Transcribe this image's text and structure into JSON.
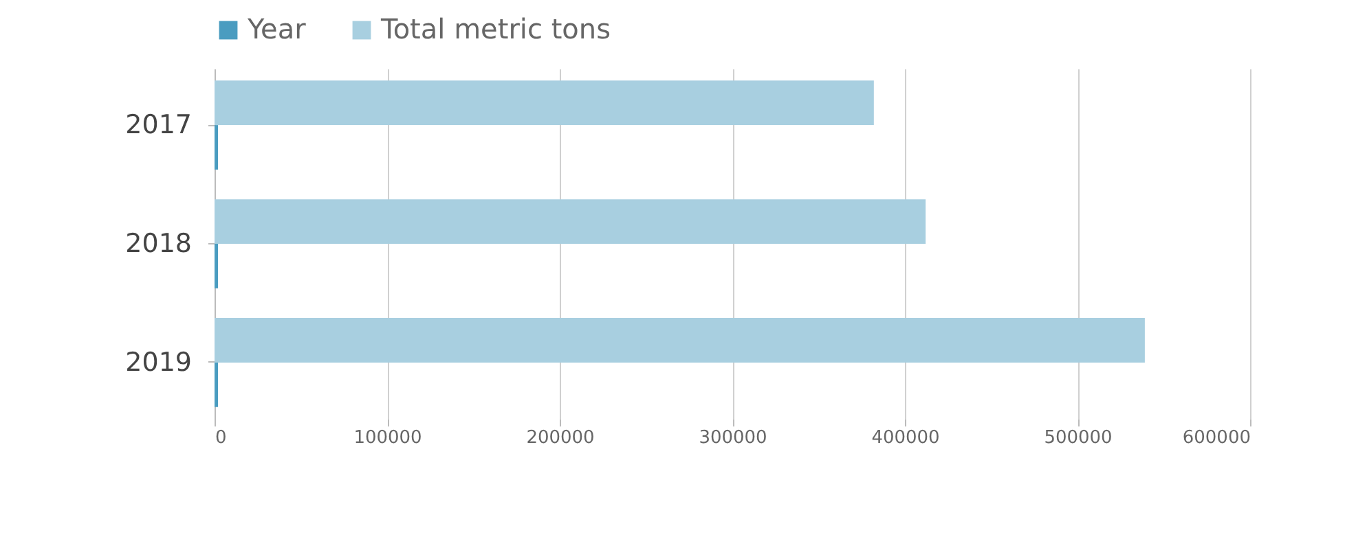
{
  "chart_data": {
    "type": "bar",
    "orientation": "horizontal",
    "categories": [
      "2017",
      "2018",
      "2019"
    ],
    "series": [
      {
        "name": "Year",
        "color": "#4a9cc0",
        "values": [
          2017,
          2018,
          2019
        ]
      },
      {
        "name": "Total metric tons",
        "color": "#a8cfe0",
        "values": [
          382000,
          412000,
          539000
        ]
      }
    ],
    "xlim": [
      0,
      600000
    ],
    "xticks": [
      0,
      100000,
      200000,
      300000,
      400000,
      500000,
      600000
    ],
    "grid": "x",
    "legend": "top"
  }
}
